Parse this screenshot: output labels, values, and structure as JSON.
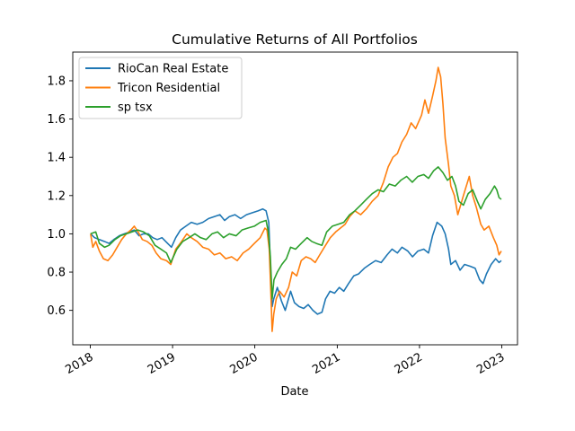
{
  "chart_data": {
    "type": "line",
    "title": "Cumulative Returns of All Portfolios",
    "xlabel": "Date",
    "ylabel": "",
    "xlim": [
      "2017-10-15",
      "2023-03-12"
    ],
    "ylim": [
      0.42,
      1.95
    ],
    "x_ticks": [
      "2018",
      "2019",
      "2020",
      "2021",
      "2022",
      "2023"
    ],
    "y_ticks": [
      "0.6",
      "0.8",
      "1.0",
      "1.2",
      "1.4",
      "1.6",
      "1.8"
    ],
    "legend_position": "top-left",
    "grid": false,
    "series": [
      {
        "name": "RioCan Real Estate",
        "color": "#1f77b4",
        "points": [
          [
            "2018-01-02",
            1.0
          ],
          [
            "2018-01-20",
            0.98
          ],
          [
            "2018-02-10",
            0.97
          ],
          [
            "2018-03-05",
            0.96
          ],
          [
            "2018-03-25",
            0.95
          ],
          [
            "2018-04-15",
            0.97
          ],
          [
            "2018-05-10",
            0.99
          ],
          [
            "2018-06-01",
            1.0
          ],
          [
            "2018-06-25",
            1.01
          ],
          [
            "2018-07-15",
            1.02
          ],
          [
            "2018-08-05",
            0.99
          ],
          [
            "2018-08-25",
            1.0
          ],
          [
            "2018-09-15",
            1.0
          ],
          [
            "2018-10-05",
            0.98
          ],
          [
            "2018-10-25",
            0.97
          ],
          [
            "2018-11-15",
            0.98
          ],
          [
            "2018-12-10",
            0.95
          ],
          [
            "2018-12-27",
            0.93
          ],
          [
            "2019-01-15",
            0.98
          ],
          [
            "2019-02-05",
            1.02
          ],
          [
            "2019-03-01",
            1.04
          ],
          [
            "2019-03-25",
            1.06
          ],
          [
            "2019-04-20",
            1.05
          ],
          [
            "2019-05-15",
            1.06
          ],
          [
            "2019-06-10",
            1.08
          ],
          [
            "2019-07-05",
            1.09
          ],
          [
            "2019-07-30",
            1.1
          ],
          [
            "2019-08-20",
            1.07
          ],
          [
            "2019-09-10",
            1.09
          ],
          [
            "2019-10-05",
            1.1
          ],
          [
            "2019-10-30",
            1.08
          ],
          [
            "2019-11-25",
            1.1
          ],
          [
            "2019-12-20",
            1.11
          ],
          [
            "2020-01-15",
            1.12
          ],
          [
            "2020-02-05",
            1.13
          ],
          [
            "2020-02-20",
            1.12
          ],
          [
            "2020-03-03",
            1.06
          ],
          [
            "2020-03-12",
            0.78
          ],
          [
            "2020-03-18",
            0.62
          ],
          [
            "2020-03-25",
            0.66
          ],
          [
            "2020-04-10",
            0.72
          ],
          [
            "2020-04-28",
            0.65
          ],
          [
            "2020-05-15",
            0.6
          ],
          [
            "2020-06-08",
            0.7
          ],
          [
            "2020-06-25",
            0.64
          ],
          [
            "2020-07-15",
            0.62
          ],
          [
            "2020-08-05",
            0.61
          ],
          [
            "2020-08-25",
            0.63
          ],
          [
            "2020-09-15",
            0.6
          ],
          [
            "2020-10-05",
            0.58
          ],
          [
            "2020-10-25",
            0.59
          ],
          [
            "2020-11-10",
            0.66
          ],
          [
            "2020-11-30",
            0.7
          ],
          [
            "2020-12-20",
            0.69
          ],
          [
            "2021-01-10",
            0.72
          ],
          [
            "2021-01-30",
            0.7
          ],
          [
            "2021-02-20",
            0.74
          ],
          [
            "2021-03-15",
            0.78
          ],
          [
            "2021-04-05",
            0.79
          ],
          [
            "2021-05-01",
            0.82
          ],
          [
            "2021-05-25",
            0.84
          ],
          [
            "2021-06-20",
            0.86
          ],
          [
            "2021-07-15",
            0.85
          ],
          [
            "2021-08-10",
            0.89
          ],
          [
            "2021-09-01",
            0.92
          ],
          [
            "2021-09-25",
            0.9
          ],
          [
            "2021-10-15",
            0.93
          ],
          [
            "2021-11-10",
            0.91
          ],
          [
            "2021-12-01",
            0.88
          ],
          [
            "2021-12-25",
            0.91
          ],
          [
            "2022-01-20",
            0.92
          ],
          [
            "2022-02-10",
            0.9
          ],
          [
            "2022-02-28",
            0.99
          ],
          [
            "2022-03-20",
            1.06
          ],
          [
            "2022-04-10",
            1.04
          ],
          [
            "2022-04-25",
            1.0
          ],
          [
            "2022-05-10",
            0.92
          ],
          [
            "2022-05-20",
            0.84
          ],
          [
            "2022-06-10",
            0.86
          ],
          [
            "2022-06-30",
            0.81
          ],
          [
            "2022-07-20",
            0.84
          ],
          [
            "2022-08-15",
            0.83
          ],
          [
            "2022-09-05",
            0.82
          ],
          [
            "2022-09-25",
            0.76
          ],
          [
            "2022-10-10",
            0.74
          ],
          [
            "2022-10-25",
            0.79
          ],
          [
            "2022-11-15",
            0.84
          ],
          [
            "2022-12-05",
            0.87
          ],
          [
            "2022-12-20",
            0.85
          ],
          [
            "2022-12-30",
            0.86
          ]
        ]
      },
      {
        "name": "Tricon Residential",
        "color": "#ff7f0e",
        "points": [
          [
            "2018-01-02",
            1.0
          ],
          [
            "2018-01-12",
            0.93
          ],
          [
            "2018-01-25",
            0.96
          ],
          [
            "2018-02-10",
            0.91
          ],
          [
            "2018-02-28",
            0.87
          ],
          [
            "2018-03-20",
            0.86
          ],
          [
            "2018-04-10",
            0.89
          ],
          [
            "2018-04-30",
            0.93
          ],
          [
            "2018-05-20",
            0.97
          ],
          [
            "2018-06-10",
            1.0
          ],
          [
            "2018-06-30",
            1.02
          ],
          [
            "2018-07-15",
            1.04
          ],
          [
            "2018-08-01",
            1.01
          ],
          [
            "2018-08-20",
            0.97
          ],
          [
            "2018-09-10",
            0.96
          ],
          [
            "2018-10-01",
            0.94
          ],
          [
            "2018-10-20",
            0.9
          ],
          [
            "2018-11-10",
            0.87
          ],
          [
            "2018-12-05",
            0.86
          ],
          [
            "2018-12-24",
            0.84
          ],
          [
            "2019-01-15",
            0.92
          ],
          [
            "2019-02-10",
            0.96
          ],
          [
            "2019-03-05",
            1.0
          ],
          [
            "2019-03-25",
            0.98
          ],
          [
            "2019-04-20",
            0.96
          ],
          [
            "2019-05-15",
            0.93
          ],
          [
            "2019-06-10",
            0.92
          ],
          [
            "2019-07-05",
            0.89
          ],
          [
            "2019-07-30",
            0.9
          ],
          [
            "2019-08-25",
            0.87
          ],
          [
            "2019-09-20",
            0.88
          ],
          [
            "2019-10-15",
            0.86
          ],
          [
            "2019-11-10",
            0.9
          ],
          [
            "2019-12-05",
            0.92
          ],
          [
            "2019-12-30",
            0.95
          ],
          [
            "2020-01-25",
            0.98
          ],
          [
            "2020-02-15",
            1.03
          ],
          [
            "2020-02-24",
            1.02
          ],
          [
            "2020-03-05",
            0.92
          ],
          [
            "2020-03-12",
            0.7
          ],
          [
            "2020-03-18",
            0.49
          ],
          [
            "2020-03-25",
            0.58
          ],
          [
            "2020-04-05",
            0.66
          ],
          [
            "2020-04-20",
            0.7
          ],
          [
            "2020-05-10",
            0.67
          ],
          [
            "2020-05-30",
            0.72
          ],
          [
            "2020-06-15",
            0.8
          ],
          [
            "2020-07-05",
            0.78
          ],
          [
            "2020-07-25",
            0.86
          ],
          [
            "2020-08-15",
            0.88
          ],
          [
            "2020-09-05",
            0.87
          ],
          [
            "2020-09-25",
            0.85
          ],
          [
            "2020-10-15",
            0.89
          ],
          [
            "2020-11-10",
            0.94
          ],
          [
            "2020-12-01",
            0.98
          ],
          [
            "2020-12-25",
            1.01
          ],
          [
            "2021-01-15",
            1.03
          ],
          [
            "2021-02-05",
            1.05
          ],
          [
            "2021-02-25",
            1.09
          ],
          [
            "2021-03-20",
            1.12
          ],
          [
            "2021-04-15",
            1.1
          ],
          [
            "2021-05-10",
            1.13
          ],
          [
            "2021-06-05",
            1.17
          ],
          [
            "2021-07-01",
            1.2
          ],
          [
            "2021-07-25",
            1.27
          ],
          [
            "2021-08-15",
            1.35
          ],
          [
            "2021-09-05",
            1.4
          ],
          [
            "2021-09-25",
            1.42
          ],
          [
            "2021-10-15",
            1.48
          ],
          [
            "2021-11-05",
            1.52
          ],
          [
            "2021-11-25",
            1.58
          ],
          [
            "2021-12-15",
            1.55
          ],
          [
            "2022-01-10",
            1.62
          ],
          [
            "2022-01-25",
            1.7
          ],
          [
            "2022-02-10",
            1.63
          ],
          [
            "2022-02-28",
            1.72
          ],
          [
            "2022-03-15",
            1.8
          ],
          [
            "2022-03-25",
            1.87
          ],
          [
            "2022-04-05",
            1.82
          ],
          [
            "2022-04-15",
            1.68
          ],
          [
            "2022-04-25",
            1.5
          ],
          [
            "2022-05-10",
            1.36
          ],
          [
            "2022-05-20",
            1.25
          ],
          [
            "2022-06-05",
            1.2
          ],
          [
            "2022-06-20",
            1.1
          ],
          [
            "2022-07-05",
            1.16
          ],
          [
            "2022-07-20",
            1.22
          ],
          [
            "2022-08-10",
            1.3
          ],
          [
            "2022-08-25",
            1.2
          ],
          [
            "2022-09-10",
            1.14
          ],
          [
            "2022-09-30",
            1.05
          ],
          [
            "2022-10-15",
            1.02
          ],
          [
            "2022-11-05",
            1.04
          ],
          [
            "2022-11-25",
            0.98
          ],
          [
            "2022-12-10",
            0.94
          ],
          [
            "2022-12-20",
            0.89
          ],
          [
            "2022-12-30",
            0.91
          ]
        ]
      },
      {
        "name": "sp tsx",
        "color": "#2ca02c",
        "points": [
          [
            "2018-01-02",
            1.0
          ],
          [
            "2018-01-25",
            1.01
          ],
          [
            "2018-02-10",
            0.95
          ],
          [
            "2018-03-05",
            0.93
          ],
          [
            "2018-03-25",
            0.94
          ],
          [
            "2018-04-20",
            0.97
          ],
          [
            "2018-05-15",
            0.99
          ],
          [
            "2018-06-10",
            1.0
          ],
          [
            "2018-07-05",
            1.01
          ],
          [
            "2018-07-30",
            1.02
          ],
          [
            "2018-08-25",
            1.01
          ],
          [
            "2018-09-20",
            0.99
          ],
          [
            "2018-10-15",
            0.94
          ],
          [
            "2018-11-10",
            0.92
          ],
          [
            "2018-12-05",
            0.9
          ],
          [
            "2018-12-24",
            0.85
          ],
          [
            "2019-01-20",
            0.92
          ],
          [
            "2019-02-15",
            0.96
          ],
          [
            "2019-03-15",
            0.98
          ],
          [
            "2019-04-10",
            1.0
          ],
          [
            "2019-05-05",
            0.98
          ],
          [
            "2019-05-30",
            0.97
          ],
          [
            "2019-06-25",
            1.0
          ],
          [
            "2019-07-20",
            1.01
          ],
          [
            "2019-08-15",
            0.98
          ],
          [
            "2019-09-10",
            1.0
          ],
          [
            "2019-10-10",
            0.99
          ],
          [
            "2019-11-05",
            1.02
          ],
          [
            "2019-12-01",
            1.03
          ],
          [
            "2019-12-30",
            1.04
          ],
          [
            "2020-01-25",
            1.06
          ],
          [
            "2020-02-20",
            1.07
          ],
          [
            "2020-03-01",
            1.01
          ],
          [
            "2020-03-10",
            0.88
          ],
          [
            "2020-03-18",
            0.66
          ],
          [
            "2020-03-26",
            0.76
          ],
          [
            "2020-04-10",
            0.8
          ],
          [
            "2020-04-30",
            0.84
          ],
          [
            "2020-05-20",
            0.87
          ],
          [
            "2020-06-08",
            0.93
          ],
          [
            "2020-06-30",
            0.92
          ],
          [
            "2020-07-25",
            0.95
          ],
          [
            "2020-08-20",
            0.98
          ],
          [
            "2020-09-10",
            0.96
          ],
          [
            "2020-09-30",
            0.95
          ],
          [
            "2020-10-25",
            0.94
          ],
          [
            "2020-11-15",
            1.01
          ],
          [
            "2020-12-10",
            1.04
          ],
          [
            "2021-01-05",
            1.05
          ],
          [
            "2021-01-30",
            1.06
          ],
          [
            "2021-02-25",
            1.1
          ],
          [
            "2021-03-20",
            1.12
          ],
          [
            "2021-04-15",
            1.15
          ],
          [
            "2021-05-10",
            1.18
          ],
          [
            "2021-06-05",
            1.21
          ],
          [
            "2021-07-01",
            1.23
          ],
          [
            "2021-07-25",
            1.22
          ],
          [
            "2021-08-20",
            1.26
          ],
          [
            "2021-09-15",
            1.25
          ],
          [
            "2021-10-10",
            1.28
          ],
          [
            "2021-11-05",
            1.3
          ],
          [
            "2021-11-30",
            1.27
          ],
          [
            "2021-12-25",
            1.3
          ],
          [
            "2022-01-20",
            1.31
          ],
          [
            "2022-02-10",
            1.29
          ],
          [
            "2022-03-05",
            1.33
          ],
          [
            "2022-03-25",
            1.35
          ],
          [
            "2022-04-15",
            1.32
          ],
          [
            "2022-05-05",
            1.28
          ],
          [
            "2022-05-25",
            1.3
          ],
          [
            "2022-06-10",
            1.25
          ],
          [
            "2022-06-25",
            1.17
          ],
          [
            "2022-07-15",
            1.15
          ],
          [
            "2022-08-05",
            1.21
          ],
          [
            "2022-08-25",
            1.23
          ],
          [
            "2022-09-15",
            1.17
          ],
          [
            "2022-09-30",
            1.13
          ],
          [
            "2022-10-20",
            1.18
          ],
          [
            "2022-11-10",
            1.21
          ],
          [
            "2022-11-30",
            1.25
          ],
          [
            "2022-12-10",
            1.23
          ],
          [
            "2022-12-20",
            1.19
          ],
          [
            "2022-12-30",
            1.18
          ]
        ]
      }
    ]
  }
}
